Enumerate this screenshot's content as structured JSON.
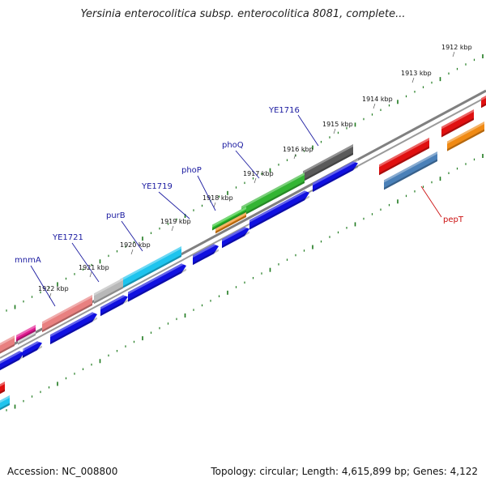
{
  "title": "Yersinia enterocolitica subsp. enterocolitica 8081, complete...",
  "footer": {
    "accession": "Accession: NC_008800",
    "summary": "Topology: circular; Length: 4,615,899 bp; Genes: 4,122"
  },
  "kbp_labels": [
    "1912 kbp",
    "1913 kbp",
    "1914 kbp",
    "1915 kbp",
    "1916 kbp",
    "1917 kbp",
    "1918 kbp",
    "1919 kbp",
    "1920 kbp",
    "1921 kbp",
    "1922 kbp"
  ],
  "gene_labels": [
    {
      "text": "YE1716",
      "color": "#1a1aa0"
    },
    {
      "text": "phoQ",
      "color": "#1a1aa0"
    },
    {
      "text": "phoP",
      "color": "#1a1aa0"
    },
    {
      "text": "YE1719",
      "color": "#1a1aa0"
    },
    {
      "text": "purB",
      "color": "#1a1aa0"
    },
    {
      "text": "YE1721",
      "color": "#1a1aa0"
    },
    {
      "text": "mnmA",
      "color": "#1a1aa0"
    },
    {
      "text": "pepT",
      "color": "#cc1111"
    }
  ],
  "colors": {
    "tick": "#1e7a1e",
    "backbone": "#808080",
    "cds": "#1010e0"
  }
}
